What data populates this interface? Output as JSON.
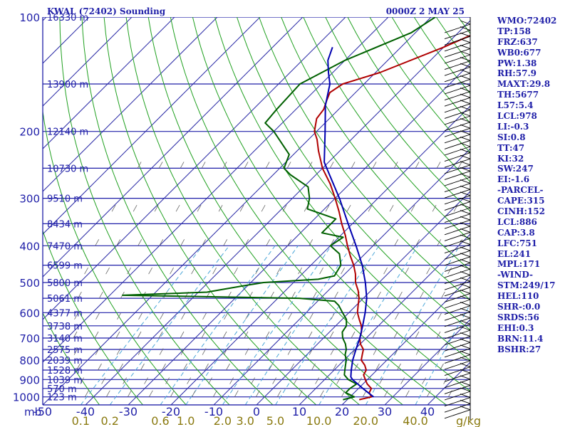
{
  "header": {
    "station": "KWAL (72402) Sounding",
    "time": "0000Z  2 MAY 25"
  },
  "colors": {
    "background": "#ffffff",
    "isobar": "#1f1fa8",
    "isotherm": "#2a2aa6",
    "dry_adiabat": "#20a020",
    "mixing_ratio": "#4aa6d8",
    "temperature": "#b00000",
    "dewpoint": "#006000",
    "parcel": "#0000b0",
    "text": "#1f1fa8",
    "mixing_label": "#8a7a10",
    "wind_barb": "#000000"
  },
  "indices": [
    "WMO:72402",
    "TP:158",
    "FRZ:637",
    "WB0:677",
    "PW:1.38",
    "RH:57.9",
    "MAXT:29.8",
    "TH:5677",
    "L57:5.4",
    "LCL:978",
    "LI:-0.3",
    "SI:0.8",
    "TT:47",
    "KI:32",
    "SW:247",
    "EI:-1.6",
    "-PARCEL-",
    "CAPE:315",
    "CINH:152",
    "LCL:886",
    "CAP:3.8",
    "LFC:751",
    "EL:241",
    "MPL:171",
    "-WIND-",
    "STM:249/17",
    "HEL:110",
    "SHR-:0.0",
    "SRDS:56",
    "EHI:0.3",
    "BRN:11.4",
    "BSHR:27"
  ],
  "chart_data": {
    "type": "line",
    "diagram": "skew-T log-P",
    "pressure_ticks": [
      "100",
      "200",
      "300",
      "400",
      "500",
      "600",
      "700",
      "800",
      "900",
      "1000"
    ],
    "pressure_unit_label": "mb",
    "temperature_ticks": [
      "-50",
      "-40",
      "-30",
      "-20",
      "-10",
      "0",
      "10",
      "20",
      "30",
      "40"
    ],
    "mixing_ratio_ticks": [
      "0.1",
      "0.2",
      "0.6",
      "1.0",
      "2.0",
      "3.0",
      "5.0",
      "10.0",
      "20.0",
      "40.0"
    ],
    "mixing_ratio_unit": "g/kg",
    "height_labels": [
      {
        "p": 100,
        "label": "16330 m"
      },
      {
        "p": 150,
        "label": "13900 m"
      },
      {
        "p": 200,
        "label": "12140 m"
      },
      {
        "p": 250,
        "label": "10730 m"
      },
      {
        "p": 300,
        "label": "9510 m"
      },
      {
        "p": 350,
        "label": "8434 m"
      },
      {
        "p": 400,
        "label": "7470 m"
      },
      {
        "p": 450,
        "label": "6599 m"
      },
      {
        "p": 500,
        "label": "5800 m"
      },
      {
        "p": 550,
        "label": "5061 m"
      },
      {
        "p": 600,
        "label": "4377 m"
      },
      {
        "p": 650,
        "label": "3738 m"
      },
      {
        "p": 700,
        "label": "3140 m"
      },
      {
        "p": 750,
        "label": "2575 m"
      },
      {
        "p": 800,
        "label": "2039 m"
      },
      {
        "p": 850,
        "label": "1528 m"
      },
      {
        "p": 900,
        "label": "1039 m"
      },
      {
        "p": 950,
        "label": "570 m"
      },
      {
        "p": 1000,
        "label": "123 m"
      }
    ],
    "p_range": [
      100,
      1050
    ],
    "t_range_at_base": [
      -50,
      50
    ],
    "skew_deg": 45,
    "series": [
      {
        "key": "temperature",
        "points": [
          [
            1017,
            22.8
          ],
          [
            1000,
            25
          ],
          [
            975,
            23.5
          ],
          [
            950,
            23
          ],
          [
            925,
            21
          ],
          [
            900,
            19.5
          ],
          [
            875,
            18
          ],
          [
            850,
            17.5
          ],
          [
            825,
            16
          ],
          [
            800,
            14
          ],
          [
            775,
            13
          ],
          [
            750,
            12
          ],
          [
            725,
            10
          ],
          [
            700,
            8.5
          ],
          [
            675,
            7.5
          ],
          [
            650,
            6
          ],
          [
            625,
            4
          ],
          [
            600,
            2
          ],
          [
            575,
            0.5
          ],
          [
            550,
            -1
          ],
          [
            525,
            -3
          ],
          [
            500,
            -5.5
          ],
          [
            475,
            -7.5
          ],
          [
            450,
            -10
          ],
          [
            425,
            -13
          ],
          [
            400,
            -16
          ],
          [
            375,
            -19
          ],
          [
            350,
            -22.5
          ],
          [
            325,
            -26
          ],
          [
            300,
            -30
          ],
          [
            275,
            -34.5
          ],
          [
            250,
            -40
          ],
          [
            225,
            -45
          ],
          [
            210,
            -48
          ],
          [
            200,
            -50.5
          ],
          [
            185,
            -53
          ],
          [
            175,
            -53.5
          ],
          [
            165,
            -55
          ],
          [
            158,
            -56
          ],
          [
            150,
            -55
          ],
          [
            140,
            -49
          ],
          [
            120,
            -40
          ],
          [
            100,
            -31
          ]
        ]
      },
      {
        "key": "dewpoint",
        "points": [
          [
            1017,
            19
          ],
          [
            1000,
            21
          ],
          [
            975,
            18
          ],
          [
            950,
            18
          ],
          [
            925,
            18.5
          ],
          [
            900,
            15.5
          ],
          [
            875,
            13.5
          ],
          [
            850,
            12.5
          ],
          [
            825,
            11.5
          ],
          [
            800,
            10.5
          ],
          [
            775,
            9
          ],
          [
            750,
            8
          ],
          [
            725,
            6.5
          ],
          [
            700,
            4.5
          ],
          [
            675,
            3
          ],
          [
            650,
            2.5
          ],
          [
            625,
            1
          ],
          [
            600,
            -1.5
          ],
          [
            575,
            -4
          ],
          [
            560,
            -6
          ],
          [
            550,
            -15
          ],
          [
            540,
            -57
          ],
          [
            530,
            -38
          ],
          [
            510,
            -31
          ],
          [
            500,
            -27
          ],
          [
            490,
            -15
          ],
          [
            480,
            -12
          ],
          [
            450,
            -13
          ],
          [
            420,
            -16
          ],
          [
            400,
            -20
          ],
          [
            380,
            -19
          ],
          [
            370,
            -25
          ],
          [
            340,
            -25
          ],
          [
            320,
            -34
          ],
          [
            300,
            -36
          ],
          [
            280,
            -39
          ],
          [
            260,
            -46
          ],
          [
            250,
            -49
          ],
          [
            230,
            -51
          ],
          [
            200,
            -60
          ],
          [
            190,
            -64
          ],
          [
            175,
            -64.5
          ],
          [
            150,
            -65
          ],
          [
            130,
            -60
          ],
          [
            110,
            -51
          ],
          [
            100,
            -49
          ]
        ]
      },
      {
        "key": "parcel",
        "points": [
          [
            1000,
            25.5
          ],
          [
            950,
            21
          ],
          [
            900,
            16.5
          ],
          [
            886,
            15.5
          ],
          [
            850,
            14
          ],
          [
            800,
            12
          ],
          [
            751,
            10.3
          ],
          [
            700,
            8.5
          ],
          [
            650,
            6.3
          ],
          [
            600,
            3.8
          ],
          [
            550,
            0.8
          ],
          [
            500,
            -3.2
          ],
          [
            450,
            -8
          ],
          [
            400,
            -14
          ],
          [
            350,
            -21
          ],
          [
            300,
            -29
          ],
          [
            250,
            -39
          ],
          [
            241,
            -41
          ],
          [
            200,
            -48
          ],
          [
            171,
            -54
          ],
          [
            150,
            -58
          ],
          [
            140,
            -61
          ],
          [
            130,
            -64
          ],
          [
            120,
            -66
          ]
        ]
      }
    ]
  }
}
